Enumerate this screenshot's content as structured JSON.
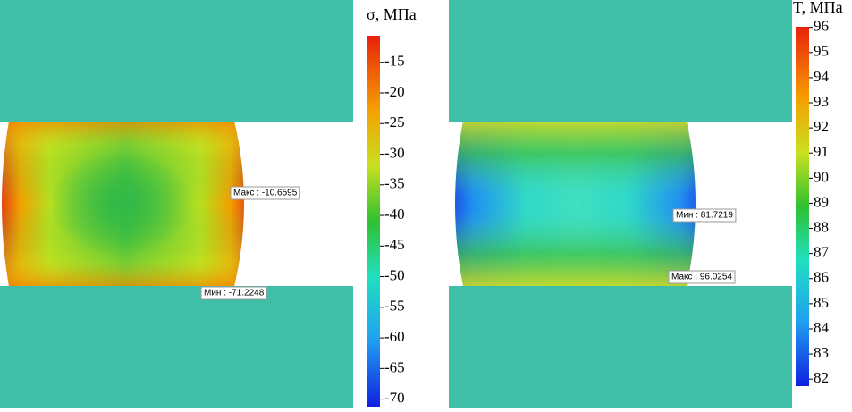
{
  "panels": [
    {
      "colorbar": {
        "title": "σ, МПа",
        "lim": [
          -71.2248,
          -10.6595
        ],
        "ticks": [
          -15,
          -20,
          -25,
          -30,
          -35,
          -40,
          -45,
          -50,
          -55,
          -60,
          -65,
          -70
        ]
      },
      "annotations": [
        "Макс : -10.6595",
        "Мин : -71.2248"
      ]
    },
    {
      "colorbar": {
        "title": "T, МПа",
        "lim": [
          81.7219,
          96.0254
        ],
        "ticks": [
          96,
          95,
          94,
          93,
          92,
          91,
          90,
          89,
          88,
          87,
          86,
          85,
          84,
          83,
          82
        ]
      },
      "annotations": [
        "Мин : 81.7219",
        "Макс : 96.0254"
      ]
    }
  ]
}
